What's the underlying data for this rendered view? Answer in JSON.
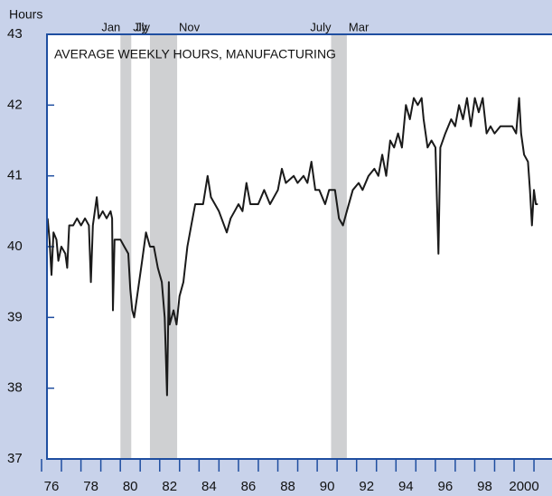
{
  "chart_data": {
    "type": "line",
    "title": "AVERAGE WEEKLY HOURS, MANUFACTURING",
    "y_label": "Hours",
    "color": "#1a1a1a",
    "x": [
      1976.3,
      1976.4,
      1976.5,
      1976.6,
      1976.75,
      1976.85,
      1977.0,
      1977.2,
      1977.3,
      1977.4,
      1977.6,
      1977.8,
      1978.0,
      1978.2,
      1978.4,
      1978.5,
      1978.6,
      1978.8,
      1978.9,
      1979.1,
      1979.3,
      1979.5,
      1979.58,
      1979.62,
      1979.7,
      1980.0,
      1980.2,
      1980.4,
      1980.5,
      1980.6,
      1980.7,
      1980.9,
      1981.1,
      1981.3,
      1981.5,
      1981.7,
      1981.9,
      1982.1,
      1982.25,
      1982.37,
      1982.42,
      1982.46,
      1982.5,
      1982.7,
      1982.85,
      1983.0,
      1983.2,
      1983.4,
      1983.6,
      1983.8,
      1984.0,
      1984.2,
      1984.43,
      1984.6,
      1984.8,
      1985.0,
      1985.4,
      1985.6,
      1985.8,
      1986.0,
      1986.2,
      1986.4,
      1986.6,
      1987.0,
      1987.3,
      1987.6,
      1988.0,
      1988.2,
      1988.4,
      1988.8,
      1989.0,
      1989.3,
      1989.5,
      1989.7,
      1989.9,
      1990.1,
      1990.4,
      1990.6,
      1990.9,
      1991.1,
      1991.3,
      1991.5,
      1991.8,
      1992.1,
      1992.3,
      1992.6,
      1992.9,
      1993.1,
      1993.3,
      1993.5,
      1993.7,
      1993.9,
      1994.1,
      1994.3,
      1994.5,
      1994.7,
      1994.9,
      1995.1,
      1995.3,
      1995.4,
      1995.6,
      1995.8,
      1996.0,
      1996.15,
      1996.25,
      1996.5,
      1996.8,
      1997.0,
      1997.2,
      1997.4,
      1997.6,
      1997.8,
      1998.0,
      1998.2,
      1998.4,
      1998.6,
      1998.8,
      1999.0,
      1999.3,
      1999.6,
      1999.9,
      2000.1,
      2000.25,
      2000.35,
      2000.5,
      2000.7,
      2000.8,
      2000.9,
      2001.0,
      2001.1,
      2001.2
    ],
    "values": [
      40.4,
      40.1,
      39.6,
      40.2,
      40.1,
      39.8,
      40.0,
      39.9,
      39.7,
      40.3,
      40.3,
      40.4,
      40.3,
      40.4,
      40.3,
      39.5,
      40.3,
      40.7,
      40.4,
      40.5,
      40.4,
      40.5,
      40.4,
      39.1,
      40.1,
      40.1,
      40.0,
      39.9,
      39.4,
      39.1,
      39.0,
      39.4,
      39.8,
      40.2,
      40.0,
      40.0,
      39.7,
      39.5,
      39.0,
      37.9,
      38.8,
      39.5,
      38.9,
      39.1,
      38.9,
      39.3,
      39.5,
      40.0,
      40.3,
      40.6,
      40.6,
      40.6,
      41.0,
      40.7,
      40.6,
      40.5,
      40.2,
      40.4,
      40.5,
      40.6,
      40.5,
      40.9,
      40.6,
      40.6,
      40.8,
      40.6,
      40.8,
      41.1,
      40.9,
      41.0,
      40.9,
      41.0,
      40.9,
      41.2,
      40.8,
      40.8,
      40.6,
      40.8,
      40.8,
      40.4,
      40.3,
      40.5,
      40.8,
      40.9,
      40.8,
      41.0,
      41.1,
      41.0,
      41.3,
      41.0,
      41.5,
      41.4,
      41.6,
      41.4,
      42.0,
      41.8,
      42.1,
      42.0,
      42.1,
      41.8,
      41.4,
      41.5,
      41.4,
      39.9,
      41.4,
      41.6,
      41.8,
      41.7,
      42.0,
      41.8,
      42.1,
      41.7,
      42.1,
      41.9,
      42.1,
      41.6,
      41.7,
      41.6,
      41.7,
      41.7,
      41.7,
      41.6,
      42.1,
      41.6,
      41.3,
      41.2,
      40.8,
      40.3,
      40.8,
      40.6,
      40.6
    ],
    "xlim": [
      1976.27,
      2001.92
    ],
    "ylim": [
      37,
      43
    ],
    "yticks": [
      37,
      38,
      39,
      40,
      41,
      42,
      43
    ],
    "xticks": [
      {
        "value": 1976.5,
        "label": "76"
      },
      {
        "value": 1978.5,
        "label": "78"
      },
      {
        "value": 1980.5,
        "label": "80"
      },
      {
        "value": 1982.5,
        "label": "82"
      },
      {
        "value": 1984.5,
        "label": "84"
      },
      {
        "value": 1986.5,
        "label": "86"
      },
      {
        "value": 1988.5,
        "label": "88"
      },
      {
        "value": 1990.5,
        "label": "90"
      },
      {
        "value": 1992.5,
        "label": "92"
      },
      {
        "value": 1994.5,
        "label": "94"
      },
      {
        "value": 1996.5,
        "label": "96"
      },
      {
        "value": 1998.5,
        "label": "98"
      },
      {
        "value": 2000.5,
        "label": "2000"
      }
    ],
    "recessions": [
      {
        "start": 1980.0,
        "end": 1980.55,
        "start_label": "Jan",
        "end_label": "Jly"
      },
      {
        "start": 1981.5,
        "end": 1982.88,
        "start_label": "Jly",
        "end_label": "Nov"
      },
      {
        "start": 1990.7,
        "end": 1991.5,
        "start_label": "July",
        "end_label": "Mar"
      }
    ]
  }
}
